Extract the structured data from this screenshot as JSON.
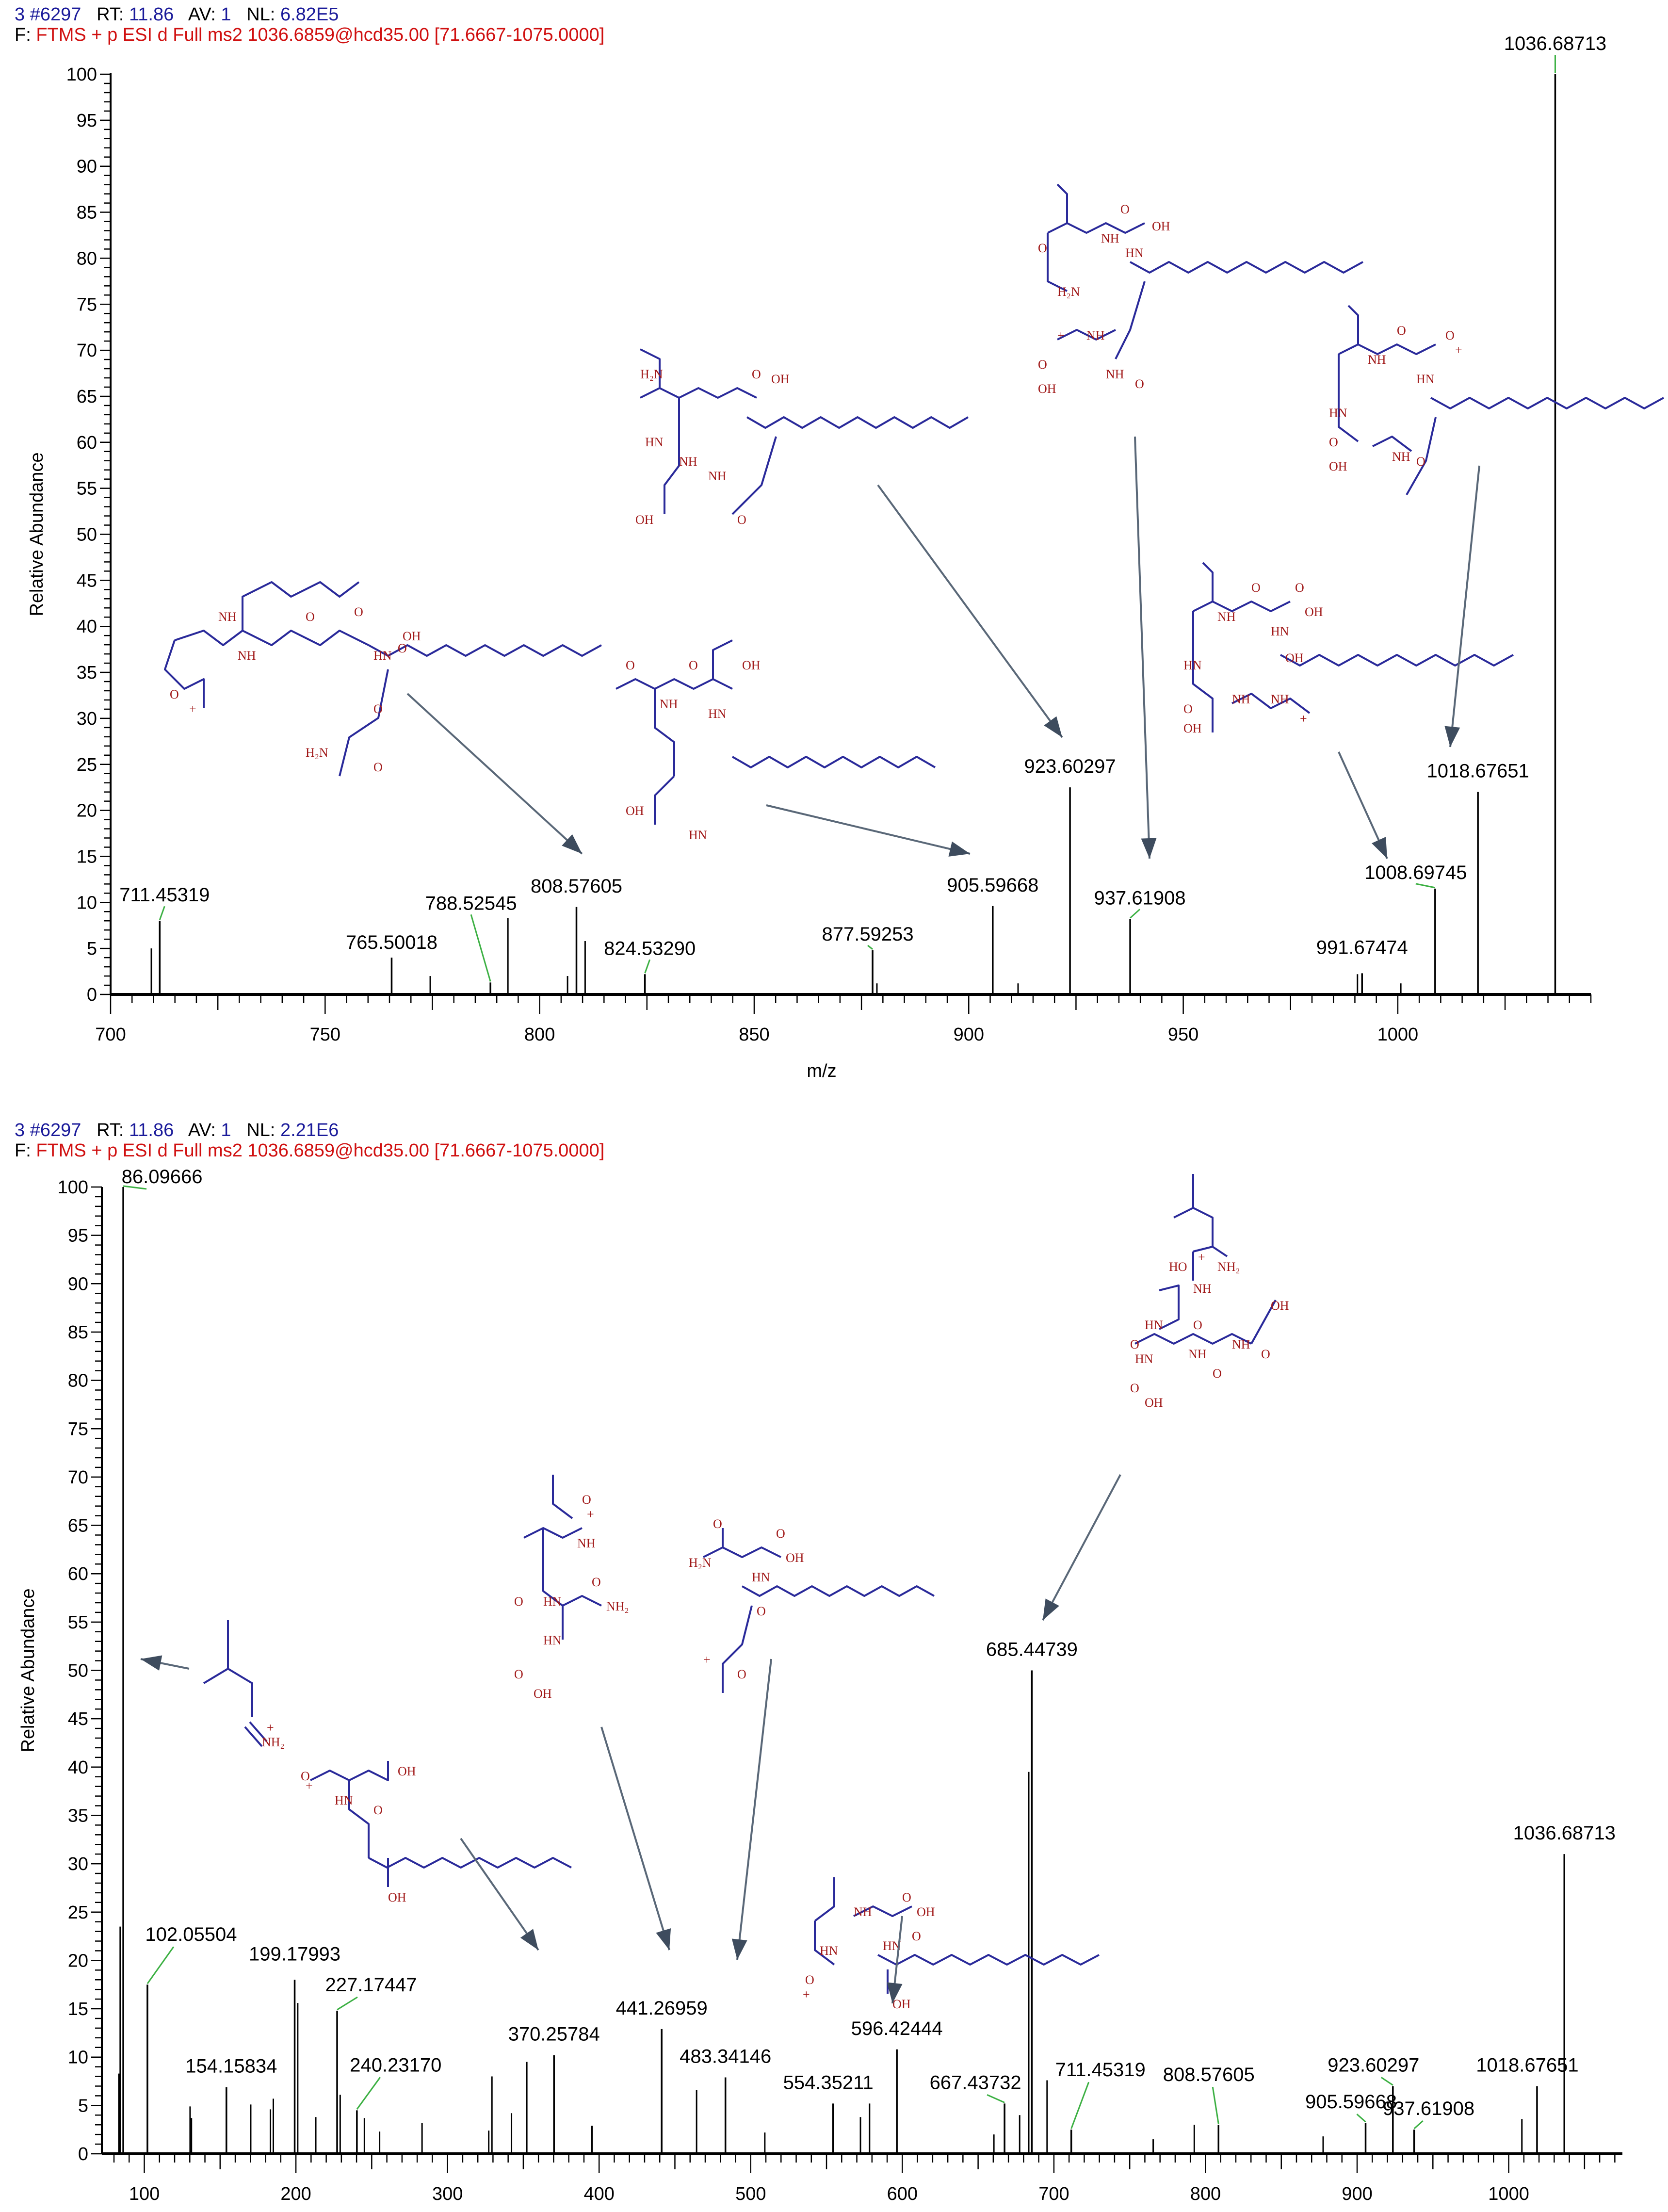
{
  "panels": [
    {
      "header": {
        "scan": "3 #6297",
        "rt_label": "RT:",
        "rt": "11.86",
        "av_label": "AV:",
        "av": "1",
        "nl_label": "NL:",
        "nl": "6.82E5",
        "filter_prefix": "F:",
        "filter": "FTMS + p ESI d Full ms2 1036.6859@hcd35.00 [71.6667-1075.0000]"
      }
    },
    {
      "header": {
        "scan": "3 #6297",
        "rt_label": "RT:",
        "rt": "11.86",
        "av_label": "AV:",
        "av": "1",
        "nl_label": "NL:",
        "nl": "2.21E6",
        "filter_prefix": "F:",
        "filter": "FTMS + p ESI d Full ms2 1036.6859@hcd35.00 [71.6667-1075.0000]"
      }
    }
  ],
  "colors": {
    "header_blue": "#1a1a9a",
    "filter_red": "#d01010",
    "bond_blue": "#2a2a9a",
    "atom_red": "#a01818",
    "arrow_gray": "#5a6878",
    "label_leader_green": "#3cb043"
  },
  "chart_data": [
    {
      "type": "bar",
      "subtype": "mass_spectrum_stick",
      "title": "3 #6297 RT: 11.86 AV: 1 NL: 6.82E5",
      "xlabel": "m/z",
      "ylabel": "Relative Abundance",
      "xlim": [
        700,
        1045
      ],
      "ylim": [
        0,
        100
      ],
      "xticks": [
        700,
        750,
        800,
        850,
        900,
        950,
        1000
      ],
      "yticks": [
        0,
        5,
        10,
        15,
        20,
        25,
        30,
        35,
        40,
        45,
        50,
        55,
        60,
        65,
        70,
        75,
        80,
        85,
        90,
        95,
        100
      ],
      "labeled_peaks": [
        {
          "mz": 711.45319,
          "label": "711.45319",
          "intensity": 8
        },
        {
          "mz": 765.50018,
          "label": "765.50018",
          "intensity": 4
        },
        {
          "mz": 788.52545,
          "label": "788.52545",
          "intensity": 1.3
        },
        {
          "mz": 808.57605,
          "label": "808.57605",
          "intensity": 9.5
        },
        {
          "mz": 824.5329,
          "label": "824.53290",
          "intensity": 2.2
        },
        {
          "mz": 877.59253,
          "label": "877.59253",
          "intensity": 4.8
        },
        {
          "mz": 905.59668,
          "label": "905.59668",
          "intensity": 9.6
        },
        {
          "mz": 923.60297,
          "label": "923.60297",
          "intensity": 22.5
        },
        {
          "mz": 937.61908,
          "label": "937.61908",
          "intensity": 8.2
        },
        {
          "mz": 991.67474,
          "label": "991.67474",
          "intensity": 2.3
        },
        {
          "mz": 1008.69745,
          "label": "1008.69745",
          "intensity": 11.5
        },
        {
          "mz": 1018.67651,
          "label": "1018.67651",
          "intensity": 22
        },
        {
          "mz": 1036.68713,
          "label": "1036.68713",
          "intensity": 100
        }
      ],
      "minor_peaks": [
        {
          "mz": 709.5,
          "intensity": 5
        },
        {
          "mz": 774.5,
          "intensity": 2
        },
        {
          "mz": 792.6,
          "intensity": 8.3
        },
        {
          "mz": 806.5,
          "intensity": 2
        },
        {
          "mz": 810.6,
          "intensity": 5.8
        },
        {
          "mz": 878.6,
          "intensity": 1.2
        },
        {
          "mz": 911.5,
          "intensity": 1.2
        },
        {
          "mz": 990.6,
          "intensity": 2.2
        },
        {
          "mz": 1000.7,
          "intensity": 1.2
        }
      ],
      "annotations": [
        {
          "target_mz": 808.57605,
          "structure": "fragment-a"
        },
        {
          "target_mz": 905.59668,
          "structure": "fragment-b"
        },
        {
          "target_mz": 923.60297,
          "structure": "fragment-c"
        },
        {
          "target_mz": 937.61908,
          "structure": "fragment-d"
        },
        {
          "target_mz": 1008.69745,
          "structure": "fragment-e"
        },
        {
          "target_mz": 1018.67651,
          "structure": "fragment-f"
        }
      ]
    },
    {
      "type": "bar",
      "subtype": "mass_spectrum_stick",
      "title": "3 #6297 RT: 11.86 AV: 1 NL: 2.21E6",
      "xlabel": "m/z",
      "ylabel": "Relative Abundance",
      "xlim": [
        72,
        1075
      ],
      "ylim": [
        0,
        100
      ],
      "xticks": [
        100,
        200,
        300,
        400,
        500,
        600,
        700,
        800,
        900,
        1000
      ],
      "yticks": [
        0,
        5,
        10,
        15,
        20,
        25,
        30,
        35,
        40,
        45,
        50,
        55,
        60,
        65,
        70,
        75,
        80,
        85,
        90,
        95,
        100
      ],
      "labeled_peaks": [
        {
          "mz": 86.09666,
          "label": "86.09666",
          "intensity": 100
        },
        {
          "mz": 102.05504,
          "label": "102.05504",
          "intensity": 17.5
        },
        {
          "mz": 154.15834,
          "label": "154.15834",
          "intensity": 6.9
        },
        {
          "mz": 199.17993,
          "label": "199.17993",
          "intensity": 18
        },
        {
          "mz": 227.17447,
          "label": "227.17447",
          "intensity": 14.8
        },
        {
          "mz": 240.2317,
          "label": "240.23170",
          "intensity": 4.5
        },
        {
          "mz": 370.25784,
          "label": "370.25784",
          "intensity": 10.2
        },
        {
          "mz": 441.26959,
          "label": "441.26959",
          "intensity": 12.9
        },
        {
          "mz": 483.34146,
          "label": "483.34146",
          "intensity": 7.9
        },
        {
          "mz": 554.35211,
          "label": "554.35211",
          "intensity": 5.2
        },
        {
          "mz": 596.42444,
          "label": "596.42444",
          "intensity": 10.8
        },
        {
          "mz": 667.43732,
          "label": "667.43732",
          "intensity": 5.2
        },
        {
          "mz": 685.44739,
          "label": "685.44739",
          "intensity": 50
        },
        {
          "mz": 711.45319,
          "label": "711.45319",
          "intensity": 2.5
        },
        {
          "mz": 808.57605,
          "label": "808.57605",
          "intensity": 3
        },
        {
          "mz": 905.59668,
          "label": "905.59668",
          "intensity": 3.2
        },
        {
          "mz": 923.60297,
          "label": "923.60297",
          "intensity": 7
        },
        {
          "mz": 937.61908,
          "label": "937.61908",
          "intensity": 2.5
        },
        {
          "mz": 1018.67651,
          "label": "1018.67651",
          "intensity": 7
        },
        {
          "mz": 1036.68713,
          "label": "1036.68713",
          "intensity": 31
        }
      ],
      "minor_peaks": [
        {
          "mz": 84.1,
          "intensity": 23.5
        },
        {
          "mz": 83.2,
          "intensity": 8.3
        },
        {
          "mz": 130.2,
          "intensity": 4.9
        },
        {
          "mz": 131.1,
          "intensity": 3.7
        },
        {
          "mz": 170.2,
          "intensity": 5.1
        },
        {
          "mz": 183.2,
          "intensity": 4.6
        },
        {
          "mz": 185.1,
          "intensity": 5.7
        },
        {
          "mz": 201.2,
          "intensity": 15.6
        },
        {
          "mz": 213.1,
          "intensity": 3.8
        },
        {
          "mz": 229.2,
          "intensity": 6.1
        },
        {
          "mz": 245.2,
          "intensity": 3.7
        },
        {
          "mz": 255.2,
          "intensity": 2.3
        },
        {
          "mz": 283.2,
          "intensity": 3.2
        },
        {
          "mz": 327.2,
          "intensity": 2.4
        },
        {
          "mz": 329.3,
          "intensity": 8.0
        },
        {
          "mz": 342.2,
          "intensity": 4.2
        },
        {
          "mz": 352.3,
          "intensity": 9.5
        },
        {
          "mz": 395.3,
          "intensity": 2.9
        },
        {
          "mz": 464.3,
          "intensity": 6.6
        },
        {
          "mz": 509.3,
          "intensity": 2.2
        },
        {
          "mz": 572.4,
          "intensity": 3.8
        },
        {
          "mz": 578.4,
          "intensity": 5.2
        },
        {
          "mz": 660.4,
          "intensity": 2.0
        },
        {
          "mz": 677.4,
          "intensity": 4.0
        },
        {
          "mz": 683.4,
          "intensity": 39.5
        },
        {
          "mz": 695.5,
          "intensity": 7.6
        },
        {
          "mz": 765.5,
          "intensity": 1.5
        },
        {
          "mz": 792.6,
          "intensity": 3.0
        },
        {
          "mz": 877.6,
          "intensity": 1.8
        },
        {
          "mz": 1008.7,
          "intensity": 3.6
        }
      ],
      "annotations": [
        {
          "target_mz": 86.09666,
          "structure": "fragment-immonium"
        },
        {
          "target_mz": 370.25784,
          "structure": "fragment-g"
        },
        {
          "target_mz": 441.26959,
          "structure": "fragment-h"
        },
        {
          "target_mz": 483.34146,
          "structure": "fragment-i"
        },
        {
          "target_mz": 596.42444,
          "structure": "fragment-j"
        },
        {
          "target_mz": 685.44739,
          "structure": "fragment-k"
        }
      ]
    }
  ],
  "structures": {
    "atom_labels": {
      "O": "O",
      "OH": "OH",
      "HO": "HO",
      "NH": "NH",
      "HN": "HN",
      "NH2": "NH₂",
      "H2N": "H₂N",
      "plus": "+"
    }
  }
}
